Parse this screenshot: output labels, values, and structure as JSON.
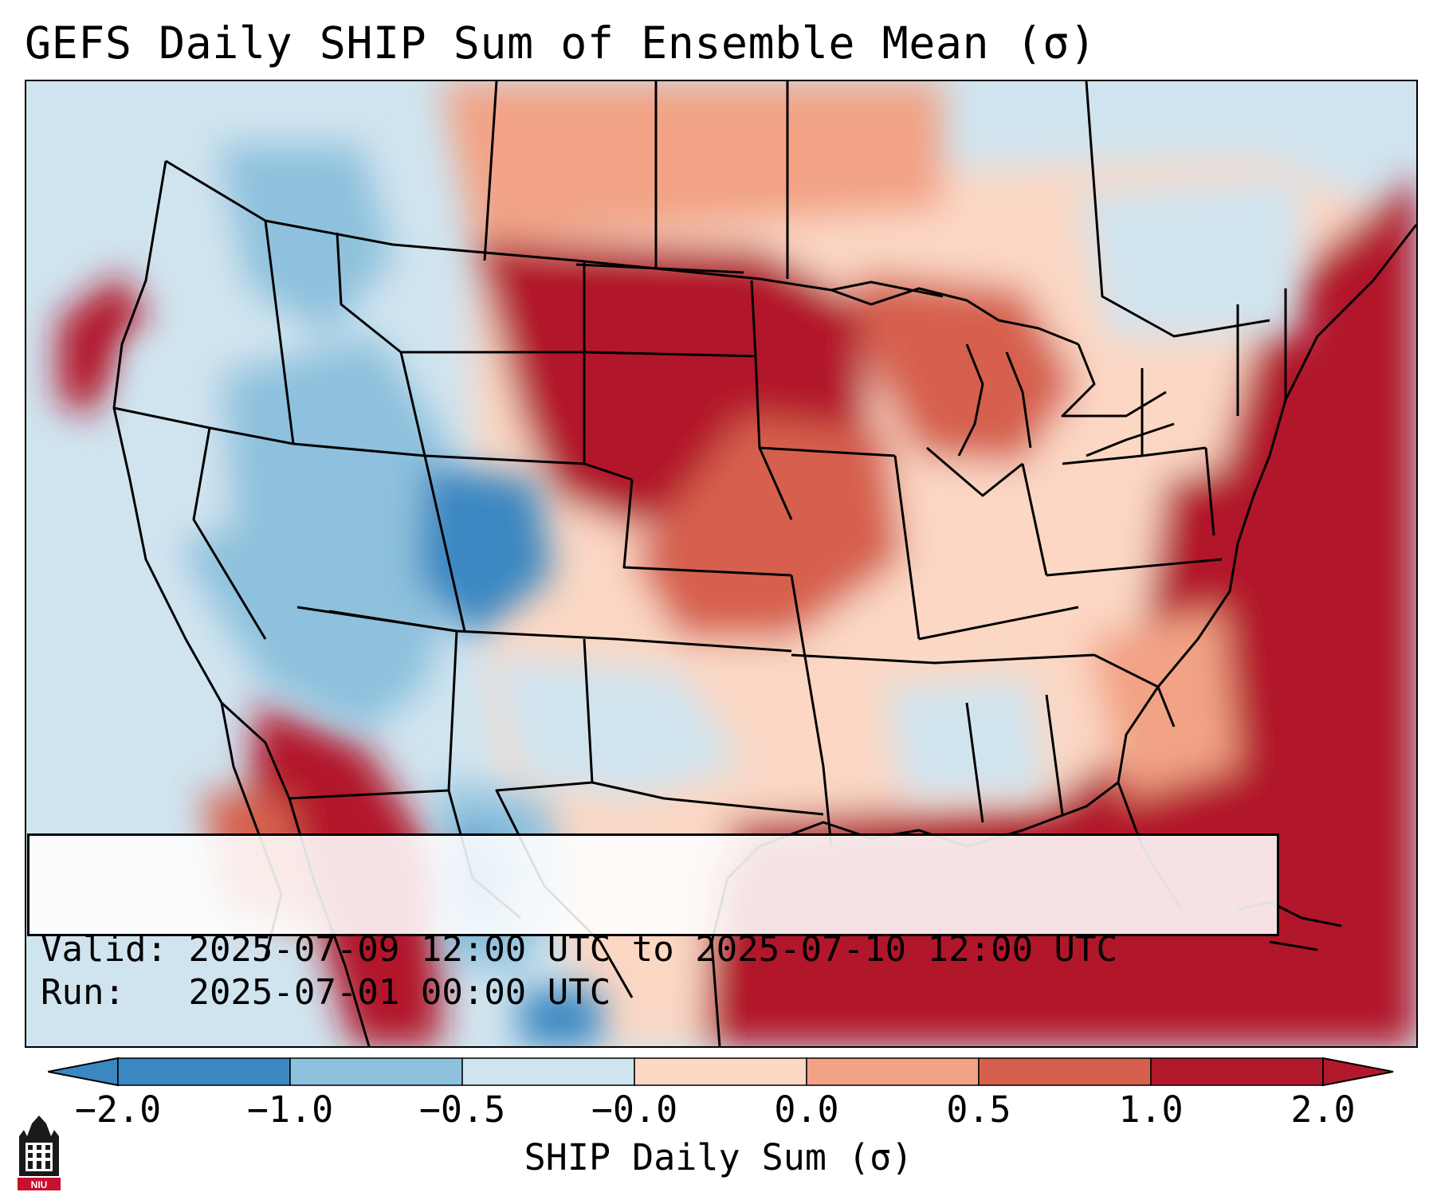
{
  "title": "GEFS Daily SHIP Sum of Ensemble Mean (σ)",
  "info": {
    "valid_label": "Valid:",
    "valid_value": "2025-07-09 12:00 UTC to 2025-07-10 12:00 UTC",
    "run_label": "Run:",
    "run_value": "2025-07-01 00:00 UTC"
  },
  "colorbar": {
    "label": "SHIP Daily Sum (σ)",
    "ticks": [
      "−2.0",
      "−1.0",
      "−0.5",
      "−0.0",
      "0.0",
      "0.5",
      "1.0",
      "2.0"
    ],
    "colors": [
      "#3b87c1",
      "#8ec1dd",
      "#d0e4ef",
      "#f6f6f6",
      "#fbd7c4",
      "#f2a385",
      "#d6604d",
      "#b2182b"
    ],
    "extend": "both"
  },
  "map": {
    "region": "contiguous United States",
    "dominant_anomaly": {
      "positive": [
        "northern Plains",
        "upper Midwest",
        "Northeast",
        "Gulf of Mexico",
        "western Atlantic",
        "western Mexico"
      ],
      "negative": [
        "Great Basin",
        "Four Corners",
        "Colorado",
        "western Texas",
        "Pacific Northwest interior"
      ]
    }
  },
  "logo": {
    "text": "NIU",
    "icon": "niu-logo-icon"
  }
}
